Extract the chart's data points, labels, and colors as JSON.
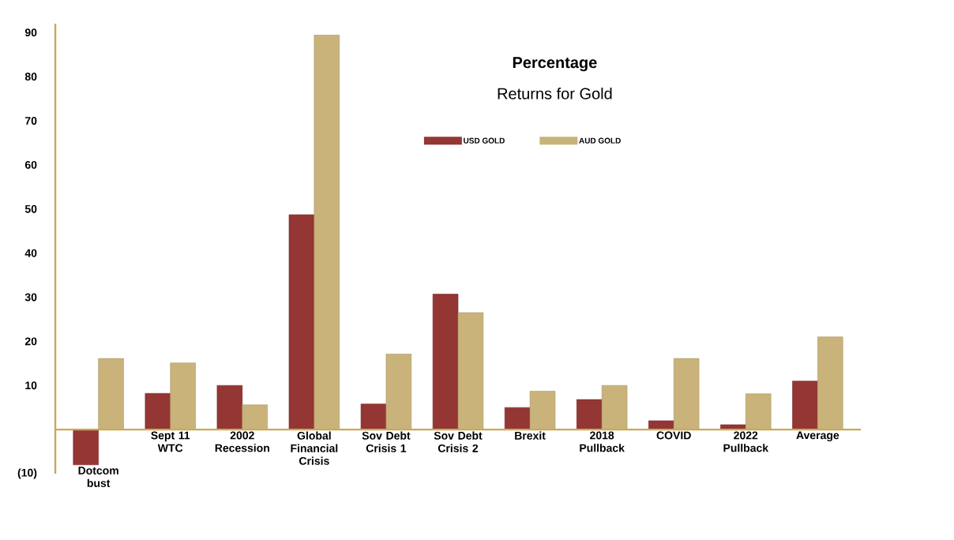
{
  "chart_data": {
    "type": "bar",
    "title": "Percentage",
    "subtitle": "Returns for Gold",
    "categories": [
      "Dotcom bust",
      "Sept 11 WTC",
      "2002 Recession",
      "Global Financial Crisis",
      "Sov Debt Crisis 1",
      "Sov Debt Crisis 2",
      "Brexit",
      "2018 Pullback",
      "COVID",
      "2022 Pullback",
      "Average"
    ],
    "series": [
      {
        "name": "USD GOLD",
        "color": "#943634",
        "values": [
          -8,
          8.2,
          10,
          48.7,
          5.8,
          30.7,
          5,
          6.8,
          2,
          1.1,
          11
        ]
      },
      {
        "name": "AUD GOLD",
        "color": "#c9b37a",
        "values": [
          16.1,
          15.1,
          5.6,
          89.4,
          17.1,
          26.5,
          8.7,
          10,
          16.1,
          8.1,
          21
        ]
      }
    ],
    "ylim": [
      -10,
      92
    ],
    "yticks": [
      {
        "value": -10,
        "label": "(10)"
      },
      10,
      20,
      30,
      40,
      50,
      60,
      70,
      80,
      90
    ],
    "grid": false,
    "legend": "top"
  }
}
